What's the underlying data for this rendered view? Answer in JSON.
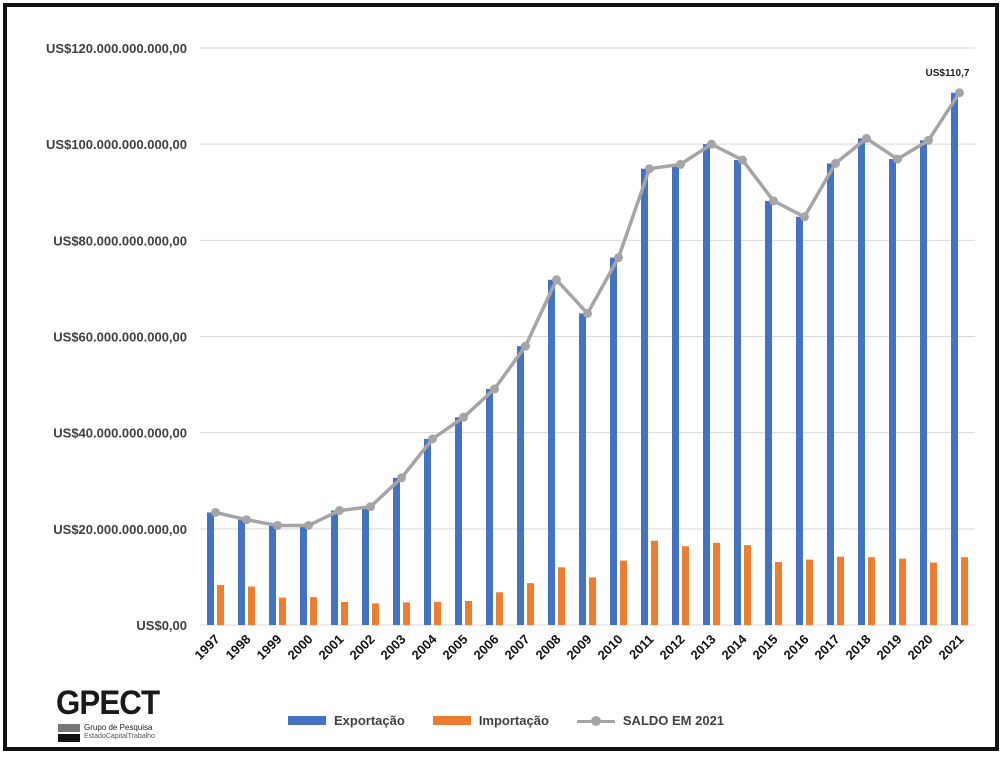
{
  "chart_data": {
    "type": "bar",
    "categories": [
      "1997",
      "1998",
      "1999",
      "2000",
      "2001",
      "2002",
      "2003",
      "2004",
      "2005",
      "2006",
      "2007",
      "2008",
      "2009",
      "2010",
      "2011",
      "2012",
      "2013",
      "2014",
      "2015",
      "2016",
      "2017",
      "2018",
      "2019",
      "2020",
      "2021"
    ],
    "series": [
      {
        "name": "Exportação",
        "type": "bar",
        "color": "#4472c4",
        "values": [
          23.4,
          21.9,
          20.7,
          20.7,
          23.8,
          24.6,
          30.6,
          38.7,
          43.2,
          49.1,
          58.0,
          71.8,
          64.8,
          76.4,
          94.9,
          95.8,
          100.0,
          96.7,
          88.2,
          84.9,
          96.0,
          101.2,
          96.9,
          100.8,
          110.7
        ]
      },
      {
        "name": "Importação",
        "type": "bar",
        "color": "#ed7d31",
        "values": [
          8.3,
          8.0,
          5.7,
          5.8,
          4.8,
          4.5,
          4.7,
          4.8,
          5.0,
          6.8,
          8.7,
          12.0,
          9.9,
          13.4,
          17.5,
          16.4,
          17.1,
          16.6,
          13.1,
          13.6,
          14.2,
          14.1,
          13.8,
          13.0,
          14.1
        ]
      },
      {
        "name": "SALDO EM 2021",
        "type": "line",
        "color": "#a5a5a5",
        "values": [
          23.4,
          21.9,
          20.7,
          20.7,
          23.8,
          24.6,
          30.6,
          38.7,
          43.2,
          49.1,
          58.0,
          71.8,
          64.8,
          76.4,
          94.9,
          95.8,
          100.0,
          96.7,
          88.2,
          84.9,
          96.0,
          101.2,
          96.9,
          100.8,
          110.7
        ]
      }
    ],
    "value_unit": "billions US$",
    "yticks": [
      "US$0,00",
      "US$20.000.000.000,00",
      "US$40.000.000.000,00",
      "US$60.000.000.000,00",
      "US$80.000.000.000,00",
      "US$100.000.000.000,00",
      "US$120.000.000.000,00"
    ],
    "ylim": [
      0,
      120
    ],
    "grid": true,
    "legend_position": "bottom",
    "annotation": {
      "category": "2021",
      "text": "US$110,7"
    },
    "title": "",
    "xlabel": "",
    "ylabel": ""
  },
  "legend": {
    "export_label": "Exportação",
    "import_label": "Importação",
    "saldo_label": "SALDO EM 2021"
  },
  "logo": {
    "word": "GPECT",
    "line1": "Grupo de Pesquisa",
    "line2": "EstadoCapitalTrabalho"
  }
}
